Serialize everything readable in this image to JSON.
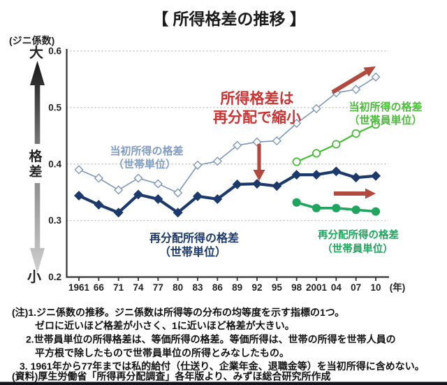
{
  "title": "【 所得格差の推移 】",
  "y_axis": {
    "unit_label": "(ジニ係数)",
    "high_label": "大",
    "low_label": "小",
    "axis_word": "格差"
  },
  "x_axis": {
    "unit_label": "(年)"
  },
  "annotation": {
    "line1": "所得格差は",
    "line2": "再分配で縮小"
  },
  "series_labels": {
    "initial_household": {
      "line1": "当初所得の格差",
      "line2": "（世帯単位）"
    },
    "initial_member": {
      "line1": "当初所得の格差",
      "line2": "（世帯員単位）"
    },
    "redist_household": {
      "line1": "再分配所得の格差",
      "line2": "（世帯単位）"
    },
    "redist_member": {
      "line1": "再分配所得の格差",
      "line2": "（世帯員単位）"
    }
  },
  "chart_data": {
    "type": "line",
    "title": "所得格差の推移（ジニ係数）",
    "x": [
      "1961",
      "66",
      "71",
      "74",
      "77",
      "80",
      "83",
      "86",
      "89",
      "92",
      "95",
      "98",
      "2001",
      "04",
      "07",
      "10"
    ],
    "x_unit": "年",
    "ylim": [
      0.2,
      0.6
    ],
    "ytick_labels": [
      "0.6",
      "0.5",
      "0.4",
      "0.3",
      "0.2"
    ],
    "grid": "horizontal-dashed",
    "series": [
      {
        "name": "当初所得の格差（世帯単位）",
        "marker": "open-diamond",
        "color": "#7d97ba",
        "start_index": 0,
        "values": [
          0.39,
          0.375,
          0.354,
          0.375,
          0.365,
          0.349,
          0.398,
          0.405,
          0.433,
          0.439,
          0.441,
          0.472,
          0.498,
          0.526,
          0.532,
          0.554
        ]
      },
      {
        "name": "当初所得の格差（世帯員単位）",
        "marker": "open-circle",
        "color": "#49bd37",
        "start_index": 11,
        "values": [
          0.404,
          0.419,
          0.435,
          0.454,
          0.47
        ]
      },
      {
        "name": "再分配所得の格差（世帯単位）",
        "marker": "filled-diamond",
        "color": "#1b3a6b",
        "start_index": 0,
        "values": [
          0.344,
          0.328,
          0.314,
          0.346,
          0.338,
          0.314,
          0.343,
          0.338,
          0.364,
          0.365,
          0.361,
          0.381,
          0.381,
          0.387,
          0.376,
          0.379
        ]
      },
      {
        "name": "再分配所得の格差（世帯員単位）",
        "marker": "filled-circle",
        "color": "#1fa55e",
        "start_index": 11,
        "values": [
          0.332,
          0.322,
          0.322,
          0.319,
          0.316
        ]
      }
    ]
  },
  "notes": [
    "(注)1.ジニ係数の推移。ジニ係数は所得等の分布の均等度を示す指標の1つ。",
    "ゼロに近いほど格差が小さく、1に近いほど格差が大きい。",
    "2.世帯員単位の所得格差は、等価所得の格差。等価所得は、世帯の所得を世帯人員の",
    "平方根で除したもので世帯員単位の所得とみなしたもの。",
    "3. 1961年から77年までは私的給付（仕送り、企業年金、退職金等）を当初所得に含めない。",
    "(資料)厚生労働省「所得再分配調査」各年版より、みずほ総合研究所作成"
  ],
  "colors": {
    "title-text": "#1a1a1a",
    "axis": "#333333",
    "grid": "#b9b9b9",
    "initial-household": "#7d97ba",
    "initial-household-label": "#7f9cc4",
    "initial-member": "#49bd37",
    "redist-household": "#1b3a6b",
    "redist-member": "#1fa55e",
    "annotation-red": "#cc3333",
    "arrow-red": "#b2493f",
    "notes-text": "#111111",
    "bottom-bar": "#14141c"
  }
}
